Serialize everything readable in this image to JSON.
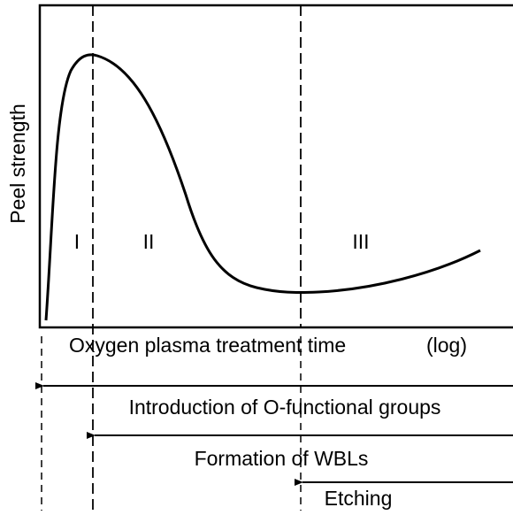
{
  "y_axis_label": "Peel strength",
  "regions": [
    "I",
    "II",
    "III"
  ],
  "x_axis_label": "Oxygen plasma treatment time",
  "x_axis_scale": "(log)",
  "processes": [
    "Introduction of O-functional groups",
    "Formation of WBLs",
    "Etching"
  ]
}
